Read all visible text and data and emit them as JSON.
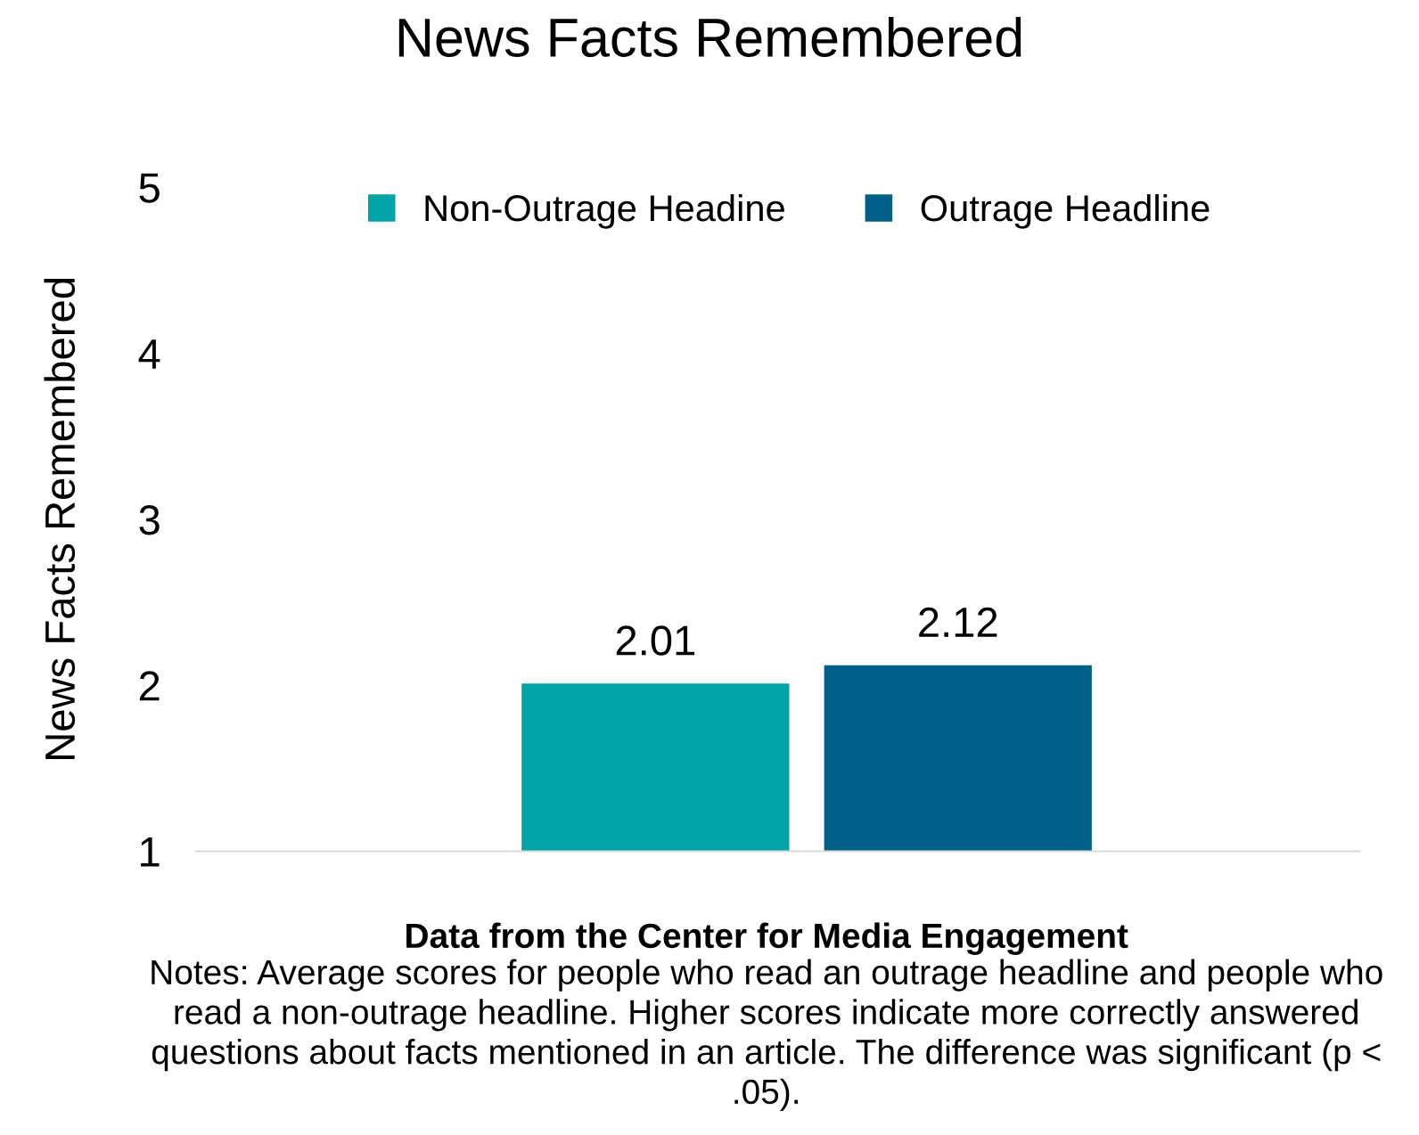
{
  "chart_data": {
    "type": "bar",
    "title": "News Facts Remembered",
    "ylabel": "News Facts Remembered",
    "categories": [
      null
    ],
    "series": [
      {
        "name": "Non-Outrage Headine",
        "color": "#00a3a8",
        "values": [
          2.01
        ]
      },
      {
        "name": "Outrage Headline",
        "color": "#005f86",
        "values": [
          2.12
        ]
      }
    ],
    "ylim": [
      1,
      5
    ],
    "yticks": [
      1,
      2,
      3,
      4,
      5
    ],
    "grid": false,
    "legend": "top",
    "data_labels": true,
    "annotations": [
      "Data from the Center for Media Engagement",
      "Notes: Average scores for people who read an outrage headline and people who read a non-outrage headline. Higher scores indicate more correctly answered questions about facts mentioned in an article. The difference was significant (p < .05)."
    ]
  }
}
